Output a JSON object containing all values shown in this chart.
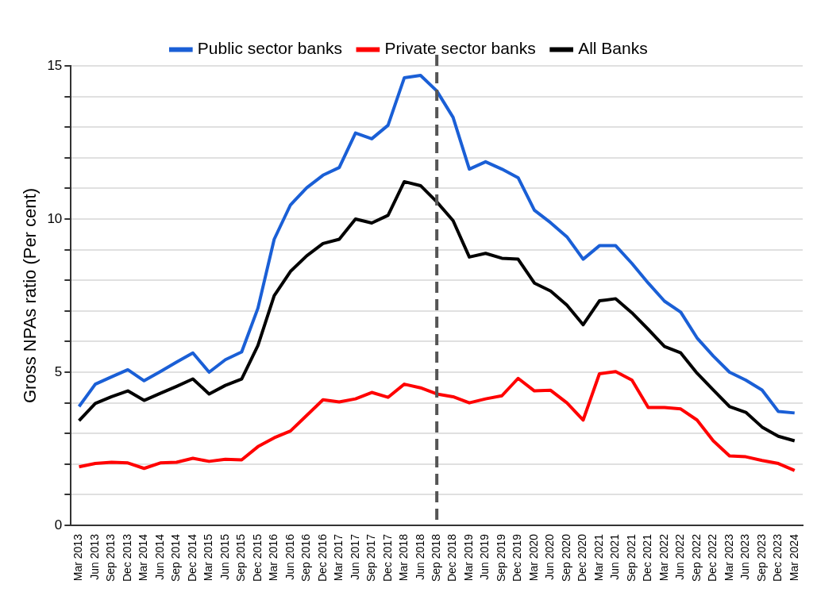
{
  "chart_data": {
    "type": "line",
    "ylabel": "Gross NPAs ratio (Per cent)",
    "categories": [
      "Mar 2013",
      "Jun 2013",
      "Sep 2013",
      "Dec 2013",
      "Mar 2014",
      "Jun 2014",
      "Sep 2014",
      "Dec 2014",
      "Mar 2015",
      "Jun 2015",
      "Sep 2015",
      "Dec 2015",
      "Mar 2016",
      "Jun 2016",
      "Sep 2016",
      "Dec 2016",
      "Mar 2017",
      "Jun 2017",
      "Sep 2017",
      "Dec 2017",
      "Mar 2018",
      "Jun 2018",
      "Sep 2018",
      "Dec 2018",
      "Mar 2019",
      "Jun 2019",
      "Sep 2019",
      "Dec 2019",
      "Mar 2020",
      "Jun 2020",
      "Sep 2020",
      "Dec 2020",
      "Mar 2021",
      "Jun 2021",
      "Sep 2021",
      "Dec 2021",
      "Mar 2022",
      "Jun 2022",
      "Sep 2022",
      "Dec 2022",
      "Mar 2023",
      "Jun 2023",
      "Sep 2023",
      "Dec 2023",
      "Mar 2024"
    ],
    "series": [
      {
        "name": "Public sector banks",
        "color": "#1a5fd6",
        "values": [
          3.88,
          4.61,
          4.85,
          5.08,
          4.72,
          5.02,
          5.33,
          5.63,
          5.0,
          5.41,
          5.66,
          7.09,
          9.34,
          10.46,
          11.02,
          11.43,
          11.68,
          12.81,
          12.62,
          13.06,
          14.61,
          14.69,
          14.18,
          13.32,
          11.63,
          11.87,
          11.63,
          11.35,
          10.29,
          9.88,
          9.42,
          8.69,
          9.13,
          9.13,
          8.55,
          7.91,
          7.32,
          6.96,
          6.12,
          5.53,
          5.0,
          4.74,
          4.42,
          3.72,
          3.67
        ]
      },
      {
        "name": "Private sector banks",
        "color": "#ff0000",
        "values": [
          1.91,
          2.02,
          2.06,
          2.04,
          1.86,
          2.04,
          2.06,
          2.19,
          2.09,
          2.16,
          2.14,
          2.57,
          2.86,
          3.08,
          3.59,
          4.1,
          4.03,
          4.13,
          4.34,
          4.18,
          4.61,
          4.49,
          4.29,
          4.2,
          4.0,
          4.13,
          4.23,
          4.8,
          4.39,
          4.41,
          4.0,
          3.44,
          4.95,
          5.02,
          4.74,
          3.85,
          3.85,
          3.8,
          3.44,
          2.76,
          2.27,
          2.24,
          2.12,
          2.02,
          1.79
        ]
      },
      {
        "name": "All Banks",
        "color": "#000000",
        "values": [
          3.42,
          3.98,
          4.2,
          4.39,
          4.08,
          4.31,
          4.54,
          4.78,
          4.29,
          4.57,
          4.78,
          5.87,
          7.5,
          8.29,
          8.8,
          9.2,
          9.34,
          10.0,
          9.87,
          10.12,
          11.22,
          11.09,
          10.56,
          9.95,
          8.76,
          8.88,
          8.72,
          8.69,
          7.91,
          7.65,
          7.19,
          6.55,
          7.33,
          7.4,
          6.94,
          6.4,
          5.84,
          5.63,
          4.97,
          4.42,
          3.88,
          3.69,
          3.21,
          2.91,
          2.76
        ]
      }
    ],
    "ylim": [
      0,
      15
    ],
    "yticks": [
      0,
      {
        "value": 1,
        "label": null
      },
      {
        "value": 2,
        "label": null
      },
      {
        "value": 3,
        "label": null
      },
      {
        "value": 4,
        "label": null
      },
      5,
      {
        "value": 6,
        "label": null
      },
      {
        "value": 7,
        "label": null
      },
      {
        "value": 8,
        "label": null
      },
      {
        "value": 9,
        "label": null
      },
      10,
      {
        "value": 11,
        "label": null
      },
      {
        "value": 12,
        "label": null
      },
      {
        "value": 13,
        "label": null
      },
      {
        "value": 14,
        "label": null
      },
      15
    ],
    "ref_lines": [
      {
        "axis": "x",
        "value": "Sep 2018",
        "color": "#555555",
        "line_style": "dashed"
      }
    ],
    "grid": "y",
    "legend": "top",
    "marker": "none",
    "line_style": "solid"
  }
}
